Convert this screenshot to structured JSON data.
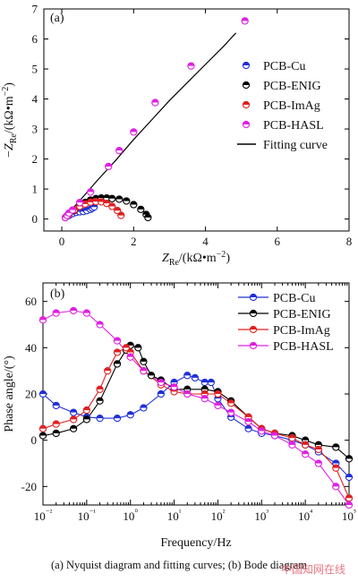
{
  "figure": {
    "caption": "(a) Nyquist diagram and fitting  curves; (b) Bode diagram",
    "watermark": "中国知网在线"
  },
  "chart_data": [
    {
      "panel": "(a)",
      "type": "scatter",
      "title": "",
      "xlabel": "Z_Re/(kΩ•m⁻²)",
      "ylabel": "−Z_Re/(kΩ•m⁻²)",
      "xlim": [
        -0.5,
        8
      ],
      "ylim": [
        -0.4,
        7
      ],
      "xticks": [
        0,
        2,
        4,
        6,
        8
      ],
      "yticks": [
        0,
        1,
        2,
        3,
        4,
        5,
        6,
        7
      ],
      "legend_position": "middle-right",
      "series": [
        {
          "name": "PCB-Cu",
          "color": "#1f2fd8",
          "marker": "circle-half",
          "x": [
            0.1,
            0.2,
            0.3,
            0.4,
            0.5,
            0.6,
            0.7,
            0.8,
            0.85,
            0.9
          ],
          "y": [
            0.05,
            0.12,
            0.18,
            0.22,
            0.24,
            0.25,
            0.28,
            0.32,
            0.36,
            0.4
          ]
        },
        {
          "name": "PCB-ENIG",
          "color": "#000000",
          "marker": "circle-half",
          "x": [
            0.1,
            0.2,
            0.35,
            0.5,
            0.65,
            0.8,
            0.95,
            1.1,
            1.25,
            1.4,
            1.6,
            1.8,
            2.0,
            2.2,
            2.35,
            2.4
          ],
          "y": [
            0.05,
            0.15,
            0.28,
            0.42,
            0.55,
            0.63,
            0.68,
            0.7,
            0.7,
            0.68,
            0.66,
            0.6,
            0.48,
            0.32,
            0.15,
            0.05
          ]
        },
        {
          "name": "PCB-ImAg",
          "color": "#e02020",
          "marker": "circle-half",
          "x": [
            0.1,
            0.2,
            0.35,
            0.5,
            0.65,
            0.8,
            0.95,
            1.1,
            1.25,
            1.4,
            1.55,
            1.65
          ],
          "y": [
            0.05,
            0.15,
            0.3,
            0.42,
            0.5,
            0.56,
            0.58,
            0.57,
            0.52,
            0.42,
            0.28,
            0.12
          ]
        },
        {
          "name": "PCB-HASL",
          "color": "#e020e0",
          "marker": "circle-half",
          "x": [
            0.1,
            0.15,
            0.2,
            0.3,
            0.5,
            0.8,
            1.3,
            1.6,
            2.0,
            2.6,
            3.6,
            5.1
          ],
          "y": [
            0.05,
            0.12,
            0.2,
            0.3,
            0.55,
            0.9,
            1.75,
            2.28,
            2.9,
            3.88,
            5.1,
            6.6
          ]
        },
        {
          "name": "Fitting curve",
          "color": "#000000",
          "marker": "line",
          "x": [
            0.05,
            0.3,
            0.6,
            1.0,
            1.5,
            2.0,
            2.5,
            3.0,
            3.5,
            4.0,
            4.5,
            4.85
          ],
          "y": [
            0.0,
            0.35,
            0.75,
            1.3,
            1.95,
            2.65,
            3.3,
            3.95,
            4.55,
            5.15,
            5.75,
            6.2
          ]
        }
      ]
    },
    {
      "panel": "(b)",
      "type": "line",
      "title": "",
      "xlabel": "Frequency/Hz",
      "ylabel": "Phase angle/(°)",
      "xscale": "log",
      "xlim": [
        0.01,
        100000
      ],
      "ylim": [
        -28,
        68
      ],
      "xticks": [
        "10⁻²",
        "10⁻¹",
        "10⁰",
        "10¹",
        "10²",
        "10³",
        "10⁴",
        "10⁵"
      ],
      "yticks": [
        -20,
        0,
        20,
        40,
        60
      ],
      "legend_position": "top-right",
      "series": [
        {
          "name": "PCB-Cu",
          "color": "#1f2fd8",
          "x": [
            0.01,
            0.02,
            0.05,
            0.1,
            0.2,
            0.5,
            1,
            2,
            5,
            10,
            20,
            30,
            50,
            70,
            100,
            200,
            500,
            1000,
            2000,
            5000,
            10000,
            20000,
            50000,
            100000
          ],
          "y": [
            20,
            15,
            12,
            10,
            9.5,
            9.5,
            11,
            14,
            20,
            25,
            28,
            27,
            25,
            25,
            18,
            10,
            5,
            3,
            2,
            0,
            -2,
            -5,
            -10,
            -16
          ]
        },
        {
          "name": "PCB-ENIG",
          "color": "#000000",
          "x": [
            0.01,
            0.02,
            0.05,
            0.1,
            0.2,
            0.5,
            0.8,
            1,
            1.5,
            2,
            3,
            5,
            10,
            20,
            50,
            100,
            200,
            500,
            1000,
            2000,
            5000,
            10000,
            20000,
            50000,
            100000
          ],
          "y": [
            2,
            3,
            5,
            9,
            17,
            33,
            39,
            41,
            40,
            34,
            28,
            26,
            22,
            22,
            22,
            21,
            17,
            10,
            5,
            3,
            2,
            0,
            -2,
            -3,
            -8
          ]
        },
        {
          "name": "PCB-ImAg",
          "color": "#e02020",
          "x": [
            0.01,
            0.02,
            0.05,
            0.1,
            0.2,
            0.3,
            0.5,
            0.8,
            1,
            2,
            5,
            10,
            20,
            50,
            100,
            200,
            500,
            1000,
            2000,
            5000,
            10000,
            20000,
            50000,
            100000
          ],
          "y": [
            5,
            7,
            9,
            13,
            22,
            30,
            38,
            40,
            38,
            30,
            24,
            21,
            20,
            20,
            20,
            16,
            10,
            5,
            3,
            1,
            -2,
            -4,
            -12,
            -25
          ]
        },
        {
          "name": "PCB-HASL",
          "color": "#e020e0",
          "x": [
            0.01,
            0.02,
            0.05,
            0.1,
            0.2,
            0.5,
            1,
            2,
            5,
            10,
            20,
            50,
            100,
            200,
            500,
            1000,
            2000,
            5000,
            10000,
            20000,
            50000,
            100000
          ],
          "y": [
            52,
            55,
            56,
            55,
            50,
            43,
            36,
            30,
            25,
            23,
            20,
            18,
            15,
            12,
            8,
            4,
            2,
            -2,
            -6,
            -10,
            -20,
            -28
          ]
        }
      ]
    }
  ]
}
